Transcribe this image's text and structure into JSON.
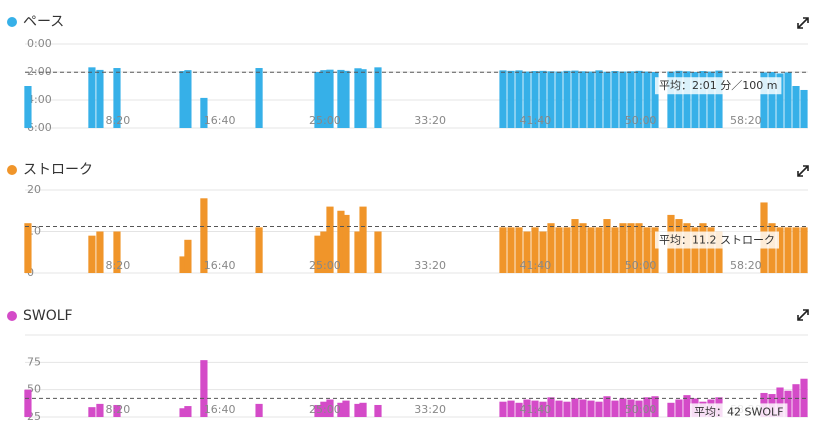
{
  "chart_data": [
    {
      "type": "bar",
      "title": "ペース",
      "color": "#36b0e8",
      "ylim": [
        360,
        0
      ],
      "yticks": [
        {
          "value": 0,
          "label": "0:00"
        },
        {
          "value": 120,
          "label": "2:00"
        },
        {
          "value": 240,
          "label": "4:00"
        },
        {
          "value": 360,
          "label": "6:00"
        }
      ],
      "xlim": [
        0,
        3720
      ],
      "xticks": [
        {
          "value": 500,
          "label": "8:20"
        },
        {
          "value": 1000,
          "label": "16:40"
        },
        {
          "value": 1500,
          "label": "25:00"
        },
        {
          "value": 2000,
          "label": "33:20"
        },
        {
          "value": 2500,
          "label": "41:40"
        },
        {
          "value": 3000,
          "label": "50:00"
        },
        {
          "value": 3500,
          "label": "58:20"
        }
      ],
      "average": {
        "value": 121,
        "label": "平均：2:01 分／100 m"
      },
      "x": [
        14,
        318,
        356,
        437,
        751,
        774,
        850,
        1112,
        1392,
        1420,
        1449,
        1501,
        1525,
        1582,
        1606,
        1677,
        2271,
        2309,
        2347,
        2385,
        2423,
        2461,
        2499,
        2537,
        2575,
        2613,
        2651,
        2689,
        2727,
        2765,
        2803,
        2841,
        2879,
        2917,
        2955,
        2993,
        3069,
        3107,
        3145,
        3183,
        3221,
        3259,
        3297,
        3511,
        3549,
        3587,
        3625,
        3663,
        3701
      ],
      "values": [
        180,
        100,
        111,
        103,
        116,
        112,
        231,
        103,
        120,
        112,
        110,
        111,
        115,
        104,
        108,
        100,
        113,
        115,
        113,
        118,
        116,
        115,
        117,
        118,
        115,
        114,
        117,
        118,
        113,
        119,
        116,
        118,
        117,
        115,
        118,
        120,
        118,
        115,
        117,
        120,
        116,
        118,
        114,
        122,
        120,
        126,
        122,
        180,
        197
      ]
    },
    {
      "type": "bar",
      "title": "ストローク",
      "color": "#f0952a",
      "ylim": [
        0,
        20
      ],
      "yticks": [
        0,
        10,
        20
      ],
      "xlim": [
        0,
        3720
      ],
      "xticks": [
        {
          "value": 500,
          "label": "8:20"
        },
        {
          "value": 1000,
          "label": "16:40"
        },
        {
          "value": 1500,
          "label": "25:00"
        },
        {
          "value": 2000,
          "label": "33:20"
        },
        {
          "value": 2500,
          "label": "41:40"
        },
        {
          "value": 3000,
          "label": "50:00"
        },
        {
          "value": 3500,
          "label": "58:20"
        }
      ],
      "average": {
        "value": 11.2,
        "label": "平均：11.2 ストローク"
      },
      "x": [
        14,
        318,
        356,
        437,
        751,
        774,
        850,
        1112,
        1392,
        1420,
        1449,
        1501,
        1525,
        1582,
        1606,
        1677,
        2271,
        2309,
        2347,
        2385,
        2423,
        2461,
        2499,
        2537,
        2575,
        2613,
        2651,
        2689,
        2727,
        2765,
        2803,
        2841,
        2879,
        2917,
        2955,
        2993,
        3069,
        3107,
        3145,
        3183,
        3221,
        3259,
        3297,
        3511,
        3549,
        3587,
        3625,
        3663,
        3701
      ],
      "values": [
        12,
        9,
        10,
        10,
        4,
        8,
        18,
        11,
        9,
        10,
        16,
        15,
        14,
        10,
        16,
        10,
        11,
        11,
        11,
        10,
        11,
        10,
        12,
        11,
        11,
        13,
        12,
        11,
        11,
        13,
        11,
        12,
        12,
        12,
        11,
        11,
        14,
        13,
        12,
        11,
        12,
        11,
        10,
        17,
        12,
        11,
        11,
        11,
        11
      ]
    },
    {
      "type": "bar",
      "title": "SWOLF",
      "color": "#d44bc8",
      "ylim": [
        25,
        100
      ],
      "yticks": [
        25,
        50,
        75
      ],
      "xlim": [
        0,
        3720
      ],
      "xticks": [
        {
          "value": 500,
          "label": "8:20"
        },
        {
          "value": 1000,
          "label": "16:40"
        },
        {
          "value": 1500,
          "label": "25:00"
        },
        {
          "value": 2000,
          "label": "33:20"
        },
        {
          "value": 2500,
          "label": "41:40"
        },
        {
          "value": 3000,
          "label": "50:00"
        },
        {
          "value": 3500,
          "label": "58:20"
        }
      ],
      "average": {
        "value": 42,
        "label": "平均：42 SWOLF"
      },
      "x": [
        14,
        318,
        356,
        437,
        751,
        774,
        850,
        1112,
        1392,
        1420,
        1449,
        1501,
        1525,
        1582,
        1606,
        1677,
        2271,
        2309,
        2347,
        2385,
        2423,
        2461,
        2499,
        2537,
        2575,
        2613,
        2651,
        2689,
        2727,
        2765,
        2803,
        2841,
        2879,
        2917,
        2955,
        2993,
        3069,
        3107,
        3145,
        3183,
        3221,
        3259,
        3297,
        3511,
        3549,
        3587,
        3625,
        3663,
        3701
      ],
      "values": [
        50,
        34,
        37,
        36,
        33,
        35,
        77,
        37,
        36,
        39,
        41,
        38,
        40,
        37,
        38,
        36,
        39,
        40,
        38,
        41,
        40,
        39,
        43,
        40,
        39,
        42,
        41,
        40,
        39,
        44,
        40,
        42,
        41,
        40,
        43,
        44,
        38,
        41,
        45,
        42,
        39,
        41,
        43,
        47,
        46,
        52,
        49,
        55,
        60
      ]
    }
  ]
}
